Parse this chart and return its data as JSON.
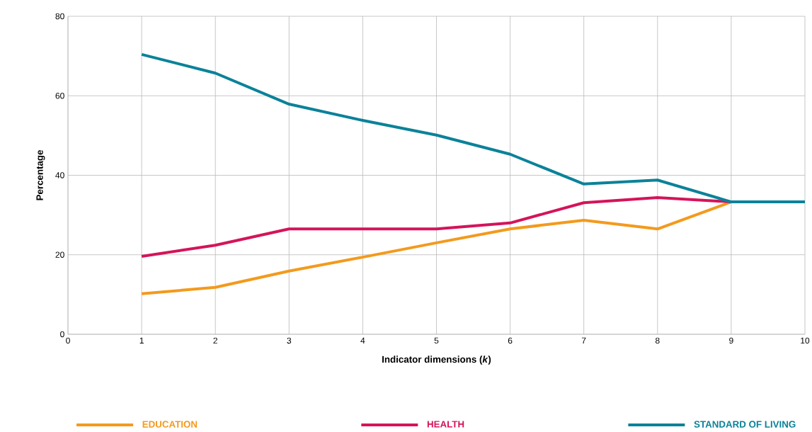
{
  "chart_data": {
    "type": "line",
    "xlabel": "Indicator dimensions (*k*)",
    "ylabel": "Percentage",
    "x": [
      1,
      2,
      3,
      4,
      5,
      6,
      7,
      8,
      9,
      10
    ],
    "series": [
      {
        "name": "EDUCATION",
        "color": "#f39a1c",
        "values": [
          10.2,
          11.8,
          15.9,
          19.4,
          23.0,
          26.5,
          28.7,
          26.5,
          33.3,
          null
        ]
      },
      {
        "name": "HEALTH",
        "color": "#d4145a",
        "values": [
          19.6,
          22.4,
          26.5,
          26.5,
          26.5,
          28.0,
          33.1,
          34.4,
          33.3,
          null
        ]
      },
      {
        "name": "STANDARD OF LIVING",
        "color": "#0b8299",
        "values": [
          70.4,
          65.7,
          57.9,
          53.8,
          50.1,
          45.3,
          37.8,
          38.8,
          33.3,
          33.3
        ]
      }
    ],
    "xlim": [
      0,
      10
    ],
    "ylim": [
      0,
      80
    ],
    "xticks": [
      0,
      1,
      2,
      3,
      4,
      5,
      6,
      7,
      8,
      9,
      10
    ],
    "yticks": [
      0,
      20,
      40,
      60,
      80
    ],
    "grid": true,
    "legend": "bottom",
    "marker": "none",
    "line_style": "solid"
  }
}
